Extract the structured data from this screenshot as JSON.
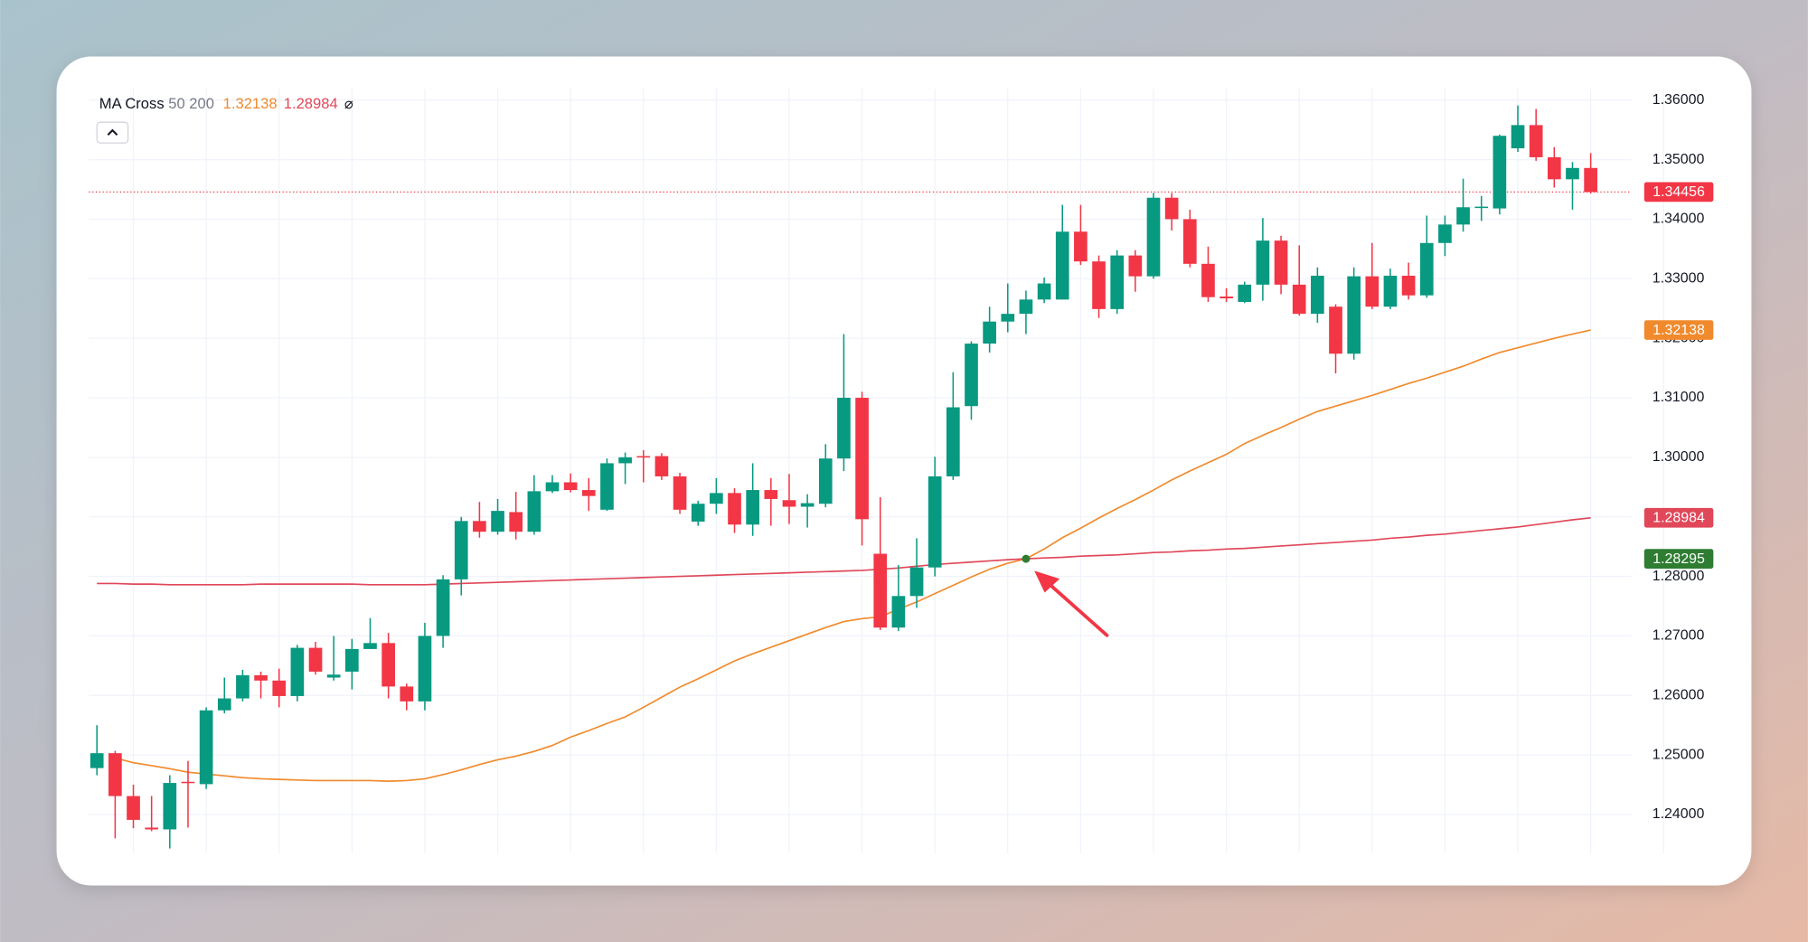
{
  "chart_data": {
    "type": "candlestick",
    "indicator": "MA Cross",
    "indicator_params": "50 200",
    "indicator_symbol": "⌀",
    "up_color": "#089981",
    "down_color": "#f23645",
    "cross_color": "#2e7d32",
    "grid": true,
    "ylim": [
      1.2335,
      1.3619
    ],
    "yticks": [
      {
        "value": 1.24,
        "label": "1.24000"
      },
      {
        "value": 1.25,
        "label": "1.25000"
      },
      {
        "value": 1.26,
        "label": "1.26000"
      },
      {
        "value": 1.27,
        "label": "1.27000"
      },
      {
        "value": 1.28,
        "label": "1.28000"
      },
      {
        "value": 1.29,
        "label": "1.29000"
      },
      {
        "value": 1.3,
        "label": "1.30000"
      },
      {
        "value": 1.31,
        "label": "1.31000"
      },
      {
        "value": 1.32,
        "label": "1.32000"
      },
      {
        "value": 1.33,
        "label": "1.33000"
      },
      {
        "value": 1.34,
        "label": "1.34000"
      },
      {
        "value": 1.35,
        "label": "1.35000"
      },
      {
        "value": 1.36,
        "label": "1.36000"
      }
    ],
    "open": [
      1.2478,
      1.2503,
      1.2431,
      1.2378,
      1.2375,
      1.2455,
      1.2451,
      1.2575,
      1.2595,
      1.2634,
      1.2625,
      1.2599,
      1.268,
      1.263,
      1.264,
      1.2678,
      1.2688,
      1.2615,
      1.259,
      1.27,
      1.2795,
      1.2893,
      1.2875,
      1.2908,
      1.2875,
      1.2943,
      1.2958,
      1.2945,
      1.2912,
      1.299,
      1.3002,
      1.3002,
      1.2968,
      1.2892,
      1.2922,
      1.294,
      1.2887,
      1.2945,
      1.2928,
      1.2917,
      1.2922,
      1.2998,
      1.31,
      1.2838,
      1.2714,
      1.2767,
      1.2815,
      1.2968,
      1.3086,
      1.3191,
      1.3228,
      1.3241,
      1.3265,
      1.3265,
      1.3379,
      1.3329,
      1.3249,
      1.3339,
      1.3304,
      1.3436,
      1.34,
      1.3325,
      1.327,
      1.3261,
      1.329,
      1.3364,
      1.329,
      1.3241,
      1.3253,
      1.3174,
      1.3304,
      1.3253,
      1.3305,
      1.3272,
      1.336,
      1.3391,
      1.3419,
      1.3418,
      1.3519,
      1.3558,
      1.3504,
      1.3467,
      1.3486
    ],
    "high": [
      1.255,
      1.2507,
      1.245,
      1.2431,
      1.2466,
      1.249,
      1.258,
      1.263,
      1.2643,
      1.264,
      1.2645,
      1.2685,
      1.269,
      1.27,
      1.2695,
      1.273,
      1.2705,
      1.262,
      1.2722,
      1.2802,
      1.29,
      1.2925,
      1.293,
      1.2942,
      1.297,
      1.297,
      1.2973,
      1.2965,
      1.2998,
      1.3008,
      1.3012,
      1.3007,
      1.2974,
      1.2927,
      1.2965,
      1.2948,
      1.299,
      1.2965,
      1.2972,
      1.2938,
      1.3022,
      1.3207,
      1.311,
      1.2933,
      1.2819,
      1.2864,
      1.3001,
      1.3143,
      1.3195,
      1.3253,
      1.3292,
      1.328,
      1.3302,
      1.3424,
      1.3424,
      1.3339,
      1.3348,
      1.3348,
      1.3444,
      1.3444,
      1.3416,
      1.3354,
      1.3284,
      1.3295,
      1.3402,
      1.3372,
      1.3356,
      1.3319,
      1.3257,
      1.3319,
      1.336,
      1.3317,
      1.3327,
      1.3406,
      1.3406,
      1.3468,
      1.3439,
      1.3542,
      1.3591,
      1.3585,
      1.3521,
      1.3496,
      1.3511
    ],
    "low": [
      1.2466,
      1.236,
      1.2377,
      1.2372,
      1.2343,
      1.2378,
      1.2443,
      1.257,
      1.259,
      1.2595,
      1.258,
      1.259,
      1.2635,
      1.2625,
      1.261,
      1.268,
      1.2595,
      1.2575,
      1.2575,
      1.268,
      1.2768,
      1.2865,
      1.287,
      1.2862,
      1.287,
      1.294,
      1.2941,
      1.291,
      1.291,
      1.2955,
      1.2958,
      1.2962,
      1.2905,
      1.2885,
      1.2905,
      1.2873,
      1.2868,
      1.2885,
      1.2888,
      1.2882,
      1.2916,
      1.2977,
      1.2852,
      1.271,
      1.2708,
      1.2747,
      1.28,
      1.2962,
      1.3063,
      1.3176,
      1.321,
      1.3207,
      1.3259,
      1.3265,
      1.3323,
      1.3234,
      1.3241,
      1.3278,
      1.33,
      1.3381,
      1.3319,
      1.3261,
      1.3261,
      1.3259,
      1.3263,
      1.3274,
      1.3238,
      1.3226,
      1.3141,
      1.3164,
      1.3249,
      1.3249,
      1.3265,
      1.3268,
      1.3338,
      1.3379,
      1.3397,
      1.3408,
      1.3513,
      1.3498,
      1.3453,
      1.3416,
      1.3443
    ],
    "close": [
      1.2503,
      1.2431,
      1.2391,
      1.2375,
      1.2453,
      1.2453,
      1.2575,
      1.2595,
      1.2634,
      1.2625,
      1.2599,
      1.268,
      1.264,
      1.2635,
      1.2678,
      1.2688,
      1.2615,
      1.259,
      1.27,
      1.2795,
      1.2893,
      1.2875,
      1.291,
      1.2875,
      1.2943,
      1.2958,
      1.2945,
      1.2935,
      1.299,
      1.3,
      1.3,
      1.2968,
      1.2912,
      1.2922,
      1.294,
      1.2887,
      1.2945,
      1.293,
      1.2917,
      1.2923,
      1.2998,
      1.31,
      1.2896,
      1.2714,
      1.2767,
      1.2815,
      1.2968,
      1.3084,
      1.3191,
      1.3228,
      1.3241,
      1.3265,
      1.3292,
      1.3379,
      1.3329,
      1.3249,
      1.3339,
      1.3304,
      1.3436,
      1.34,
      1.3325,
      1.3269,
      1.3267,
      1.329,
      1.3364,
      1.329,
      1.3241,
      1.3305,
      1.3174,
      1.3304,
      1.3253,
      1.3305,
      1.3272,
      1.336,
      1.3391,
      1.342,
      1.3421,
      1.354,
      1.3558,
      1.3504,
      1.3467,
      1.3486,
      1.34456
    ],
    "series": [
      {
        "color": "#f08a2c",
        "values": [
          null,
          1.2495,
          1.2487,
          1.2482,
          1.2477,
          1.2471,
          1.2468,
          1.2465,
          1.2462,
          1.246,
          1.2459,
          1.2458,
          1.2457,
          1.2457,
          1.2457,
          1.2457,
          1.2456,
          1.2457,
          1.246,
          1.2467,
          1.2475,
          1.2484,
          1.2492,
          1.2498,
          1.2506,
          1.2516,
          1.253,
          1.2541,
          1.2553,
          1.2564,
          1.258,
          1.2597,
          1.2614,
          1.2628,
          1.2643,
          1.2658,
          1.267,
          1.2681,
          1.2692,
          1.2703,
          1.2714,
          1.2724,
          1.2729,
          1.2732,
          1.2745,
          1.2757,
          1.2771,
          1.2785,
          1.2799,
          1.2812,
          1.2822,
          1.28295,
          1.2846,
          1.2865,
          1.2881,
          1.2898,
          1.2914,
          1.2929,
          1.2945,
          1.2962,
          1.2977,
          1.2991,
          1.3005,
          1.3023,
          1.3037,
          1.305,
          1.3064,
          1.3077,
          1.3086,
          1.3095,
          1.3104,
          1.3114,
          1.3124,
          1.3133,
          1.3143,
          1.3153,
          1.3165,
          1.3176,
          1.3184,
          1.3192,
          1.32,
          1.3207,
          1.32138
        ]
      },
      {
        "color": "#e0485a",
        "values": [
          1.2788,
          1.2788,
          1.2787,
          1.2787,
          1.2786,
          1.2786,
          1.2786,
          1.2786,
          1.2786,
          1.2787,
          1.2787,
          1.2787,
          1.2787,
          1.2787,
          1.2787,
          1.2786,
          1.2786,
          1.2786,
          1.2786,
          1.2787,
          1.2788,
          1.2789,
          1.279,
          1.2791,
          1.2792,
          1.2793,
          1.2794,
          1.2795,
          1.2796,
          1.2797,
          1.2798,
          1.2799,
          1.28,
          1.2801,
          1.2802,
          1.2803,
          1.2804,
          1.2805,
          1.2806,
          1.2807,
          1.2808,
          1.2809,
          1.281,
          1.2812,
          1.2814,
          1.2817,
          1.282,
          1.2822,
          1.2824,
          1.2826,
          1.2828,
          1.28295,
          1.2831,
          1.2832,
          1.2834,
          1.2835,
          1.2836,
          1.2838,
          1.284,
          1.2841,
          1.2843,
          1.2844,
          1.2846,
          1.2847,
          1.2849,
          1.2851,
          1.2853,
          1.2855,
          1.2857,
          1.2859,
          1.2861,
          1.2864,
          1.2866,
          1.2869,
          1.2871,
          1.2874,
          1.2877,
          1.288,
          1.2883,
          1.2887,
          1.2891,
          1.2895,
          1.28984
        ]
      }
    ]
  }
}
